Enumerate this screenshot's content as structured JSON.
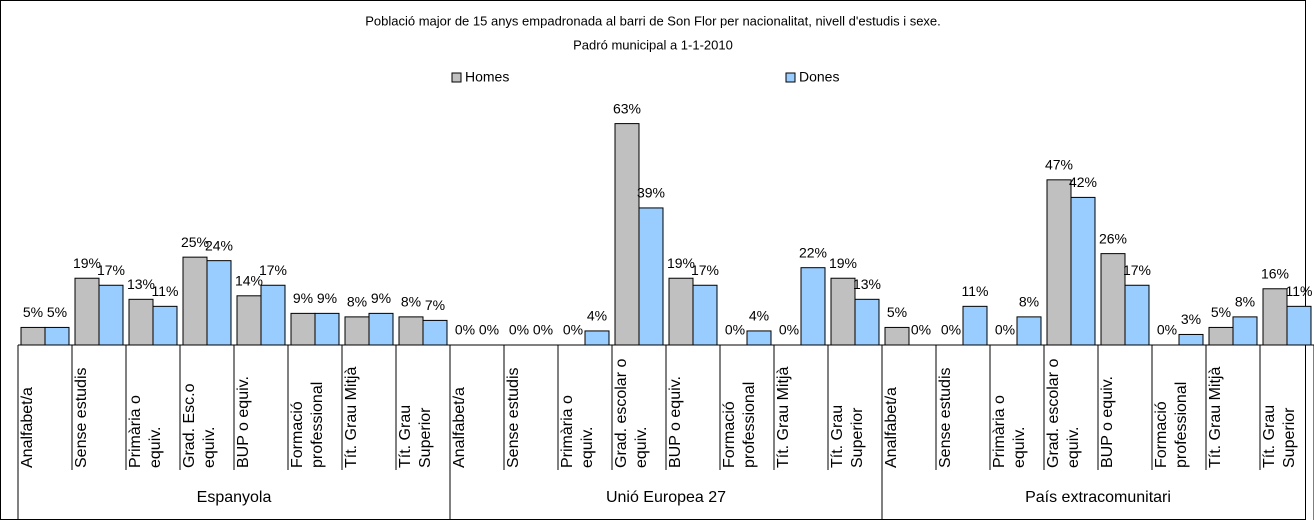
{
  "chart_data": {
    "type": "bar",
    "title": "Població major de 15 anys empadronada al barri de Son Flor per nacionalitat, nivell d'estudis i sexe.",
    "subtitle": "Padró municipal a 1-1-2010",
    "groups": [
      "Espanyola",
      "Unió Europea 27",
      "País extracomunitari"
    ],
    "categories": [
      "Analfabet/a",
      "Sense estudis",
      "Primària o equiv.",
      "Grad. Esc.o equiv.",
      "BUP o equiv.",
      "Formació professional",
      "Tít. Grau Mitjà",
      "Tít. Grau Superior",
      "Analfabet/a",
      "Sense estudis",
      "Primària o equiv.",
      "Grad. escolar o equiv.",
      "BUP o equiv.",
      "Formació professional",
      "Tít. Grau Mitjà",
      "Tít. Grau Superior",
      "Analfabet/a",
      "Sense estudis",
      "Primària o equiv.",
      "Grad. escolar o equiv.",
      "BUP o equiv.",
      "Formació professional",
      "Tít. Grau Mitjà",
      "Tít. Grau Superior"
    ],
    "series": [
      {
        "name": "Homes",
        "color": "#c0c0c0",
        "values": [
          5,
          19,
          13,
          25,
          14,
          9,
          8,
          8,
          0,
          0,
          0,
          63,
          19,
          0,
          0,
          19,
          5,
          0,
          0,
          47,
          26,
          0,
          5,
          16
        ],
        "value_labels": [
          "5%",
          "19%",
          "13%",
          "25%",
          "14%",
          "9%",
          "8%",
          "8%",
          "0%",
          "0%",
          "0%",
          "63%",
          "19%",
          "0%",
          "0%",
          "19%",
          "5%",
          "0%",
          "0%",
          "47%",
          "26%",
          "0%",
          "5%",
          "16%"
        ]
      },
      {
        "name": "Dones",
        "color": "#99ccff",
        "values": [
          5,
          17,
          11,
          24,
          17,
          9,
          9,
          7,
          0,
          0,
          4,
          39,
          17,
          4,
          22,
          13,
          0,
          11,
          8,
          42,
          17,
          3,
          8,
          11
        ],
        "value_labels": [
          "5%",
          "17%",
          "11%",
          "24%",
          "17%",
          "9%",
          "9%",
          "7%",
          "0%",
          "0%",
          "4%",
          "39%",
          "17%",
          "4%",
          "22%",
          "13%",
          "0%",
          "11%",
          "8%",
          "42%",
          "17%",
          "3%",
          "8%",
          "11%"
        ]
      }
    ],
    "ylim": [
      0,
      70
    ]
  }
}
